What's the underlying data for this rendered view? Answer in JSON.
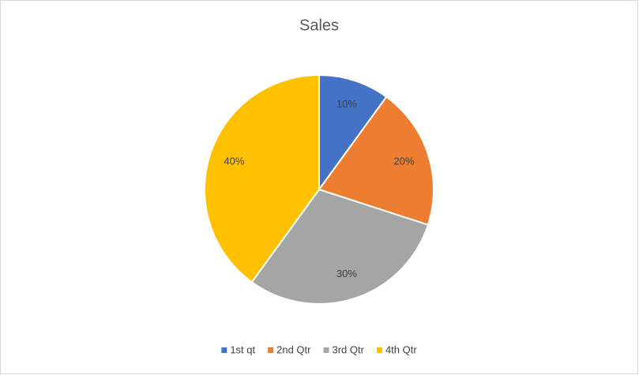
{
  "chart_data": {
    "type": "pie",
    "title": "Sales",
    "categories": [
      "1st qt",
      "2nd Qtr",
      "3rd Qtr",
      "4th Qtr"
    ],
    "values": [
      10,
      20,
      30,
      40
    ],
    "value_labels": [
      "10%",
      "20%",
      "30%",
      "40%"
    ],
    "colors": [
      "#4472c4",
      "#ed7d31",
      "#a5a5a5",
      "#ffc000"
    ]
  }
}
